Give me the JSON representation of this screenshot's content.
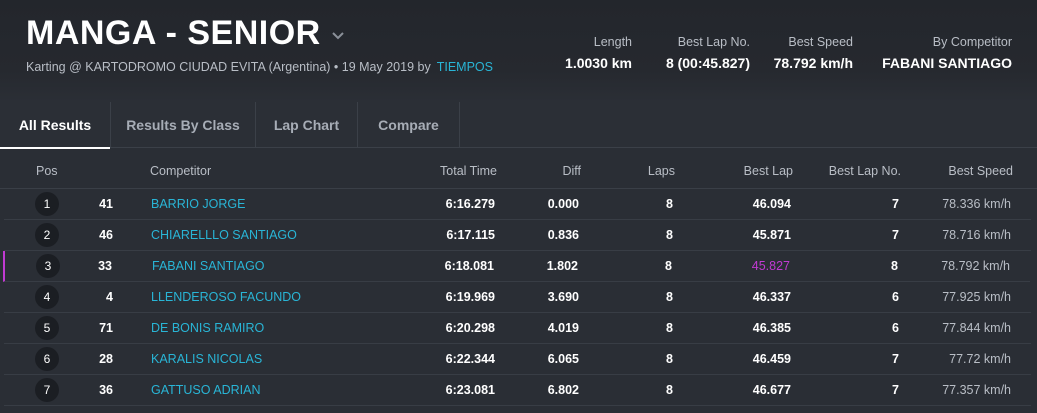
{
  "header": {
    "title": "MANGA - SENIOR",
    "subtitle": "Karting @ KARTODROMO CIUDAD EVITA (Argentina) • 19 May 2019 by",
    "provider_link": "TIEMPOS",
    "stats": [
      {
        "label": "Length",
        "value": "1.0030 km"
      },
      {
        "label": "Best Lap No.",
        "value": "8 (00:45.827)"
      },
      {
        "label": "Best Speed",
        "value": "78.792 km/h"
      },
      {
        "label": "By Competitor",
        "value": "FABANI SANTIAGO"
      }
    ]
  },
  "tabs": [
    {
      "label": "All Results",
      "active": true
    },
    {
      "label": "Results By Class",
      "active": false
    },
    {
      "label": "Lap Chart",
      "active": false
    },
    {
      "label": "Compare",
      "active": false
    }
  ],
  "table": {
    "columns": [
      "Pos",
      "Competitor",
      "Total Time",
      "Diff",
      "Laps",
      "Best Lap",
      "Best Lap No.",
      "Best Speed"
    ],
    "highlight_color": "#c03ad2",
    "rows": [
      {
        "pos": "1",
        "num": "41",
        "competitor": "BARRIO JORGE",
        "total": "6:16.279",
        "diff": "0.000",
        "laps": "8",
        "best_lap": "46.094",
        "best_lap_no": "7",
        "best_speed": "78.336 km/h",
        "highlight": false
      },
      {
        "pos": "2",
        "num": "46",
        "competitor": "CHIARELLLO SANTIAGO",
        "total": "6:17.115",
        "diff": "0.836",
        "laps": "8",
        "best_lap": "45.871",
        "best_lap_no": "7",
        "best_speed": "78.716 km/h",
        "highlight": false
      },
      {
        "pos": "3",
        "num": "33",
        "competitor": "FABANI SANTIAGO",
        "total": "6:18.081",
        "diff": "1.802",
        "laps": "8",
        "best_lap": "45.827",
        "best_lap_no": "8",
        "best_speed": "78.792 km/h",
        "highlight": true
      },
      {
        "pos": "4",
        "num": "4",
        "competitor": "LLENDEROSO FACUNDO",
        "total": "6:19.969",
        "diff": "3.690",
        "laps": "8",
        "best_lap": "46.337",
        "best_lap_no": "6",
        "best_speed": "77.925 km/h",
        "highlight": false
      },
      {
        "pos": "5",
        "num": "71",
        "competitor": "DE BONIS RAMIRO",
        "total": "6:20.298",
        "diff": "4.019",
        "laps": "8",
        "best_lap": "46.385",
        "best_lap_no": "6",
        "best_speed": "77.844 km/h",
        "highlight": false
      },
      {
        "pos": "6",
        "num": "28",
        "competitor": "KARALIS NICOLAS",
        "total": "6:22.344",
        "diff": "6.065",
        "laps": "8",
        "best_lap": "46.459",
        "best_lap_no": "7",
        "best_speed": "77.72 km/h",
        "highlight": false
      },
      {
        "pos": "7",
        "num": "36",
        "competitor": "GATTUSO ADRIAN",
        "total": "6:23.081",
        "diff": "6.802",
        "laps": "8",
        "best_lap": "46.677",
        "best_lap_no": "7",
        "best_speed": "77.357 km/h",
        "highlight": false
      }
    ]
  }
}
